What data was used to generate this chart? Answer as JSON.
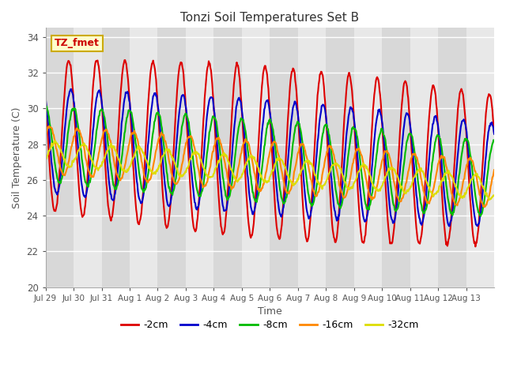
{
  "title": "Tonzi Soil Temperatures Set B",
  "xlabel": "Time",
  "ylabel": "Soil Temperature (C)",
  "ylim": [
    20,
    34.5
  ],
  "yticks": [
    20,
    22,
    24,
    26,
    28,
    30,
    32,
    34
  ],
  "bg_color": "#e0e0e0",
  "band_colors": [
    "#d8d8d8",
    "#e8e8e8"
  ],
  "grid_color": "#ffffff",
  "series": [
    {
      "label": "-2cm",
      "color": "#dd0000"
    },
    {
      "label": "-4cm",
      "color": "#0000cc"
    },
    {
      "label": "-8cm",
      "color": "#00bb00"
    },
    {
      "label": "-16cm",
      "color": "#ff8800"
    },
    {
      "label": "-32cm",
      "color": "#dddd00"
    }
  ],
  "xtick_labels": [
    "Jul 29",
    "Jul 30",
    "Jul 31",
    "Aug 1",
    "Aug 2",
    "Aug 3",
    "Aug 4",
    "Aug 5",
    "Aug 6",
    "Aug 7",
    "Aug 8",
    "Aug 9",
    "Aug 10",
    "Aug 11",
    "Aug 12",
    "Aug 13"
  ],
  "annotation_text": "TZ_fmet",
  "annotation_bg": "#ffffcc",
  "annotation_border": "#ccaa00",
  "figsize": [
    6.4,
    4.8
  ],
  "dpi": 100
}
